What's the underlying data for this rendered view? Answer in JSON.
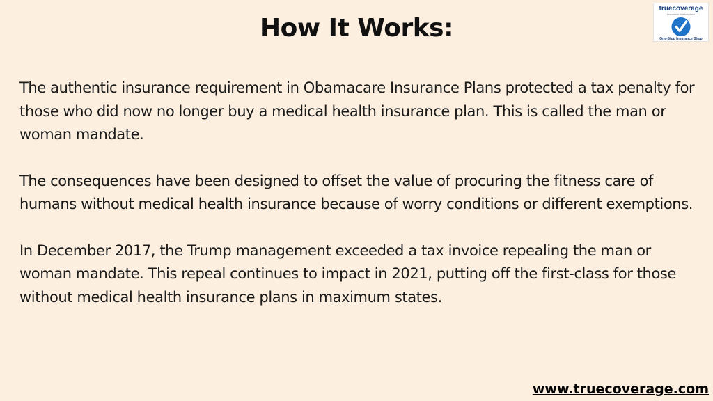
{
  "header": {
    "title": "How It Works:"
  },
  "logo": {
    "brand": "truecoverage",
    "subtitle": "Insurance Marketplace",
    "tagline": "One-Stop Insurance Shop",
    "icon": "checkmark-circle-icon",
    "colors": {
      "brand_blue": "#1b3f7a",
      "circle_blue": "#1e74c8"
    }
  },
  "content": {
    "paragraphs": [
      "The authentic insurance requirement in Obamacare Insurance Plans protected a tax penalty for those who did now no longer buy a medical health insurance plan. This is called the man or woman mandate.",
      "The consequences have been designed to offset the value of procuring the fitness care of humans without medical health insurance because of worry conditions or different exemptions.",
      "In December 2017, the Trump management exceeded a tax invoice repealing the man or woman mandate. This repeal continues to impact in 2021, putting off the first-class for those without medical health insurance plans in maximum states."
    ]
  },
  "footer": {
    "url": "www.truecoverage.com"
  },
  "colors": {
    "background": "#fcefdf",
    "text": "#1a1a1a"
  }
}
